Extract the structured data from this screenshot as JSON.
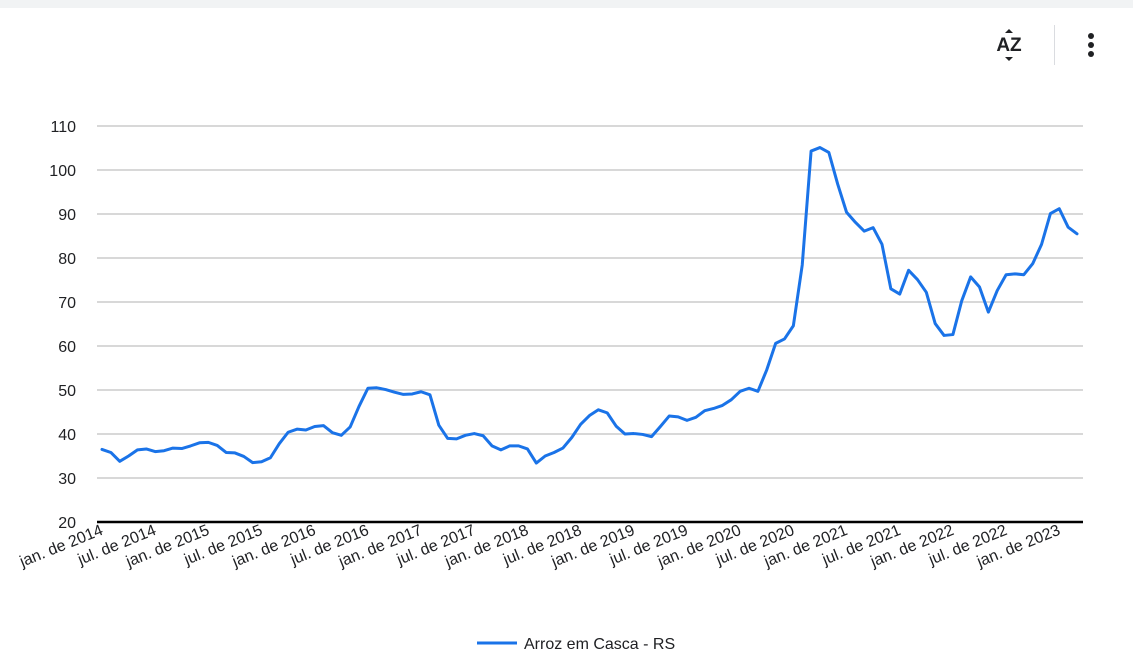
{
  "toolbar": {
    "sort_icon": "sort-az-icon",
    "sort_label": "AZ",
    "more_icon": "more-vert-icon"
  },
  "chart_data": {
    "type": "line",
    "title": "",
    "xlabel": "",
    "ylabel": "",
    "ylim": [
      20,
      110
    ],
    "yticks": [
      20,
      30,
      40,
      50,
      60,
      70,
      80,
      90,
      100,
      110
    ],
    "grid": true,
    "legend_position": "bottom",
    "x_tick_labels": [
      "jan. de 2014",
      "jul. de 2014",
      "jan. de 2015",
      "jul. de 2015",
      "jan. de 2016",
      "jul. de 2016",
      "jan. de 2017",
      "jul. de 2017",
      "jan. de 2018",
      "jul. de 2018",
      "jan. de 2019",
      "jul. de 2019",
      "jan. de 2020",
      "jul. de 2020",
      "jan. de 2021",
      "jul. de 2021",
      "jan. de 2022",
      "jul. de 2022",
      "jan. de 2023"
    ],
    "x_start": "2014-01",
    "x_frequency": "monthly",
    "series": [
      {
        "name": "Arroz em Casca - RS",
        "color": "#1a73e8",
        "values": [
          36.5,
          35.8,
          33.8,
          35.0,
          36.4,
          36.6,
          36.0,
          36.2,
          36.8,
          36.7,
          37.3,
          38.0,
          38.1,
          37.4,
          35.8,
          35.7,
          34.9,
          33.5,
          33.7,
          34.6,
          37.8,
          40.4,
          41.1,
          40.9,
          41.7,
          41.9,
          40.3,
          39.7,
          41.6,
          46.3,
          50.4,
          50.5,
          50.1,
          49.5,
          49.0,
          49.1,
          49.6,
          48.9,
          42.0,
          39.0,
          38.9,
          39.7,
          40.1,
          39.6,
          37.3,
          36.4,
          37.3,
          37.3,
          36.6,
          33.4,
          35.0,
          35.8,
          36.8,
          39.2,
          42.2,
          44.2,
          45.5,
          44.8,
          41.8,
          40.0,
          40.1,
          39.9,
          39.4,
          41.7,
          44.1,
          43.9,
          43.1,
          43.8,
          45.3,
          45.8,
          46.5,
          47.8,
          49.7,
          50.4,
          49.7,
          54.6,
          60.6,
          61.6,
          64.6,
          78.4,
          104.3,
          105.1,
          104.0,
          96.8,
          90.4,
          88.1,
          86.1,
          86.9,
          83.1,
          73.0,
          71.8,
          77.2,
          75.1,
          72.2,
          65.1,
          62.4,
          62.6,
          70.3,
          75.7,
          73.4,
          67.7,
          72.6,
          76.2,
          76.4,
          76.2,
          78.7,
          83.1,
          90.1,
          91.2,
          87.0,
          85.5
        ]
      }
    ]
  }
}
